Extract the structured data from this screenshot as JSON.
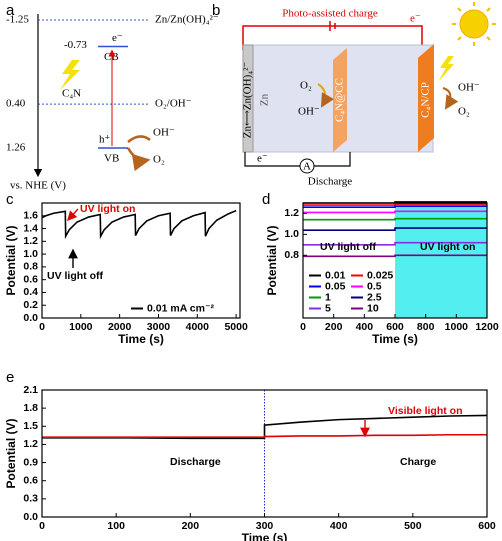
{
  "panel_labels": [
    "a",
    "b",
    "c",
    "d",
    "e"
  ],
  "energy_diagram": {
    "axis_label": "vs. NHE (V)",
    "material": "C₄N",
    "redox": [
      {
        "value": -1.25,
        "name": "Zn/Zn(OH)₄²⁻"
      },
      {
        "value": 0.4,
        "label": "0.40",
        "name": "O₂/OH⁻"
      }
    ],
    "bands": [
      {
        "value": -0.73,
        "name": "CB",
        "carrier": "e⁻"
      },
      {
        "value": 1.26,
        "name": "VB",
        "carrier": "h⁺"
      }
    ],
    "reaction": [
      "OH⁻",
      "O₂"
    ]
  },
  "cell_diagram": {
    "charge_label": "Photo-assisted charge",
    "charge_electron": "e⁻",
    "anode_reaction": "Zn⟷Zn(OH)₄²⁻",
    "anode": "Zn",
    "middle_reaction": [
      "O₂",
      "OH⁻"
    ],
    "middle_electrode": "C₄N@CC",
    "photo_electrode": "C₄N/CP",
    "photo_reaction": [
      "OH⁻",
      "O₂"
    ],
    "discharge_electron": "e⁻",
    "ammeter": "A",
    "discharge_label": "Discharge"
  },
  "chart_data": [
    {
      "type": "line",
      "x_label": "Time (s)",
      "y_label": "Potential (V)",
      "xlim": [
        0,
        5100
      ],
      "xticks": [
        0,
        1000,
        2000,
        3000,
        4000,
        5000
      ],
      "ylim": [
        0,
        1.8
      ],
      "yticks": [
        {
          "value": 0,
          "label": "0.0"
        },
        0.2,
        0.4,
        0.6,
        0.8,
        {
          "value": 1,
          "label": "1.0"
        },
        1.2,
        1.4,
        1.6
      ],
      "x": [
        0,
        100,
        300,
        600,
        610,
        700,
        900,
        1200,
        1500,
        1510,
        1600,
        1800,
        2100,
        2400,
        2410,
        2500,
        2700,
        3000,
        3300,
        3310,
        3400,
        3600,
        3900,
        4200,
        4210,
        4300,
        4500,
        4800,
        5000
      ],
      "series": [
        {
          "name": "0.01 mA cm⁻²",
          "color": "#000000",
          "values": [
            1.57,
            1.6,
            1.64,
            1.67,
            1.28,
            1.38,
            1.5,
            1.58,
            1.62,
            1.28,
            1.38,
            1.5,
            1.58,
            1.62,
            1.29,
            1.4,
            1.52,
            1.6,
            1.64,
            1.29,
            1.4,
            1.52,
            1.6,
            1.65,
            1.28,
            1.4,
            1.53,
            1.63,
            1.68
          ]
        }
      ],
      "legend": "lower right",
      "annotations": [
        {
          "text": "UV light on",
          "color": "#e00000"
        },
        {
          "text": "UV light off",
          "color": "#000000"
        }
      ]
    },
    {
      "type": "line",
      "x_label": "Time (s)",
      "y_label": "Potential (V)",
      "xlim": [
        0,
        1200
      ],
      "xticks": [
        0,
        200,
        400,
        600,
        800,
        1000,
        1200
      ],
      "ylim": [
        0.2,
        1.3
      ],
      "yticks": [
        0.8,
        {
          "value": 1,
          "label": "1.0"
        },
        1.2
      ],
      "shaded_x": [
        600,
        1200
      ],
      "shade_color": "#52eef0",
      "x": [
        0,
        600,
        600,
        1200
      ],
      "series": [
        {
          "name": "0.01",
          "color": "#000000",
          "values": [
            1.3,
            1.3,
            1.31,
            1.31
          ]
        },
        {
          "name": "0.025",
          "color": "#ff0000",
          "values": [
            1.28,
            1.28,
            1.29,
            1.29
          ]
        },
        {
          "name": "0.05",
          "color": "#0000ff",
          "values": [
            1.26,
            1.26,
            1.27,
            1.27
          ]
        },
        {
          "name": "0.5",
          "color": "#ff00ff",
          "values": [
            1.21,
            1.21,
            1.22,
            1.22
          ]
        },
        {
          "name": "1",
          "color": "#009900",
          "values": [
            1.14,
            1.14,
            1.15,
            1.15
          ]
        },
        {
          "name": "2.5",
          "color": "#000080",
          "values": [
            1.04,
            1.04,
            1.06,
            1.06
          ]
        },
        {
          "name": "5",
          "color": "#8a2be2",
          "values": [
            0.9,
            0.9,
            0.92,
            0.92
          ]
        },
        {
          "name": "10",
          "color": "#800080",
          "values": [
            0.79,
            0.79,
            0.8,
            0.8
          ]
        }
      ],
      "legend": "lower left",
      "legend_columns": 2,
      "annotations": [
        {
          "text": "UV light off",
          "color": "#000000"
        },
        {
          "text": "UV light on",
          "color": "#000000"
        }
      ]
    },
    {
      "type": "line",
      "x_label": "Time (s)",
      "y_label": "Potential (V)",
      "xlim": [
        0,
        600
      ],
      "xticks": [
        0,
        100,
        200,
        300,
        400,
        500,
        600
      ],
      "ylim": [
        0,
        2.1
      ],
      "yticks": [
        {
          "value": 0,
          "label": "0.0"
        },
        0.3,
        0.6,
        0.9,
        1.2,
        1.5,
        1.8,
        2.1
      ],
      "vline_x": 300,
      "x": [
        0,
        100,
        200,
        300,
        300,
        350,
        400,
        450,
        500,
        550,
        600
      ],
      "series": [
        {
          "color": "#000000",
          "values": [
            1.31,
            1.31,
            1.3,
            1.3,
            1.52,
            1.57,
            1.61,
            1.63,
            1.65,
            1.67,
            1.68
          ]
        },
        {
          "color": "#e00000",
          "values": [
            1.32,
            1.32,
            1.32,
            1.32,
            1.33,
            1.34,
            1.34,
            1.35,
            1.35,
            1.36,
            1.36
          ]
        }
      ],
      "annotations": [
        {
          "text": "Discharge",
          "color": "#000000"
        },
        {
          "text": "Charge",
          "color": "#000000"
        },
        {
          "text": "Visible light on",
          "color": "#e00000"
        }
      ]
    }
  ]
}
